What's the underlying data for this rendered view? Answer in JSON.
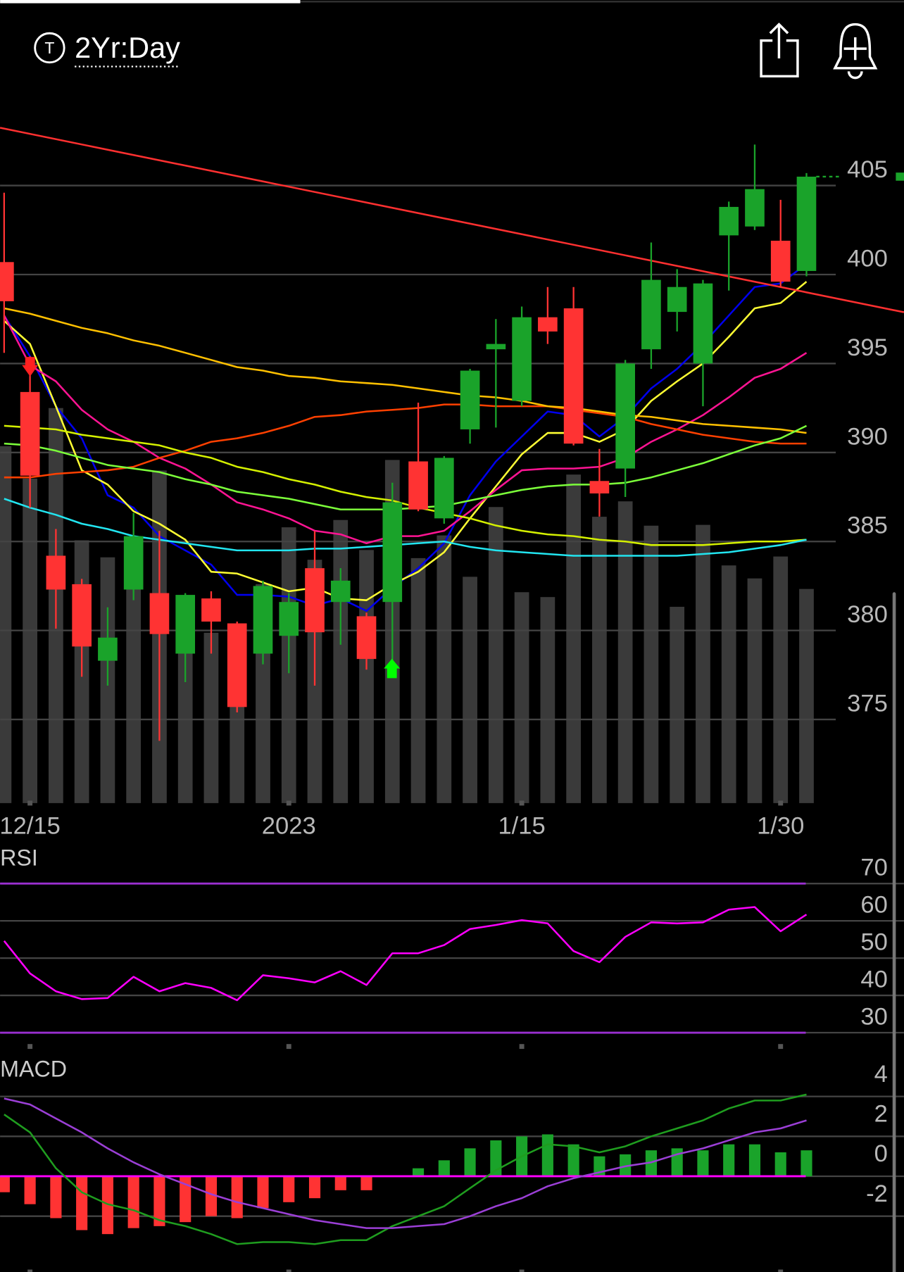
{
  "header": {
    "icon_letter": "T",
    "timeframe": "2Yr:Day"
  },
  "chart_data": [
    {
      "type": "candlestick",
      "categories": [
        null,
        "12/15",
        null,
        null,
        null,
        null,
        null,
        null,
        null,
        null,
        null,
        "2023",
        null,
        null,
        null,
        null,
        null,
        null,
        null,
        null,
        "1/15",
        null,
        null,
        null,
        null,
        null,
        null,
        null,
        null,
        null,
        "1/30",
        null
      ],
      "open": [
        400.7,
        393.4,
        384.2,
        382.6,
        378.3,
        382.3,
        382.1,
        378.7,
        381.8,
        380.4,
        378.7,
        379.7,
        383.5,
        381.6,
        380.8,
        381.6,
        389.5,
        386.3,
        391.3,
        395.8,
        392.9,
        397.6,
        398.1,
        388.4,
        389.1,
        395.8,
        397.9,
        395.0,
        402.2,
        402.7,
        401.9,
        400.2
      ],
      "high": [
        404.6,
        395.4,
        385.7,
        382.9,
        381.3,
        386.6,
        385.6,
        382.1,
        382.2,
        380.5,
        382.8,
        382.1,
        385.6,
        383.5,
        381.0,
        388.3,
        392.8,
        389.8,
        394.7,
        397.5,
        398.2,
        399.3,
        399.3,
        390.2,
        395.2,
        401.8,
        400.3,
        399.7,
        404.1,
        407.3,
        404.2,
        405.7
      ],
      "low": [
        395.6,
        386.9,
        380.1,
        377.4,
        376.9,
        381.7,
        373.8,
        377.1,
        378.7,
        375.4,
        378.1,
        377.6,
        376.9,
        379.2,
        377.8,
        378.0,
        386.7,
        386.0,
        390.5,
        391.4,
        392.6,
        396.1,
        390.4,
        386.4,
        387.5,
        394.7,
        396.8,
        392.6,
        399.1,
        402.5,
        399.3,
        399.9
      ],
      "close": [
        398.5,
        388.7,
        382.3,
        379.1,
        379.6,
        385.3,
        379.8,
        382.0,
        380.5,
        375.7,
        382.5,
        381.6,
        379.9,
        382.8,
        378.4,
        387.2,
        386.8,
        389.7,
        394.6,
        396.1,
        397.6,
        396.8,
        390.5,
        387.7,
        395.0,
        399.7,
        399.3,
        399.5,
        403.8,
        404.8,
        399.6,
        405.5
      ],
      "volume": [
        440,
        400,
        487,
        324,
        303,
        290,
        410,
        250,
        210,
        160,
        270,
        340,
        300,
        349,
        312,
        423,
        302,
        330,
        279,
        365,
        260,
        254,
        405,
        353,
        372,
        342,
        242,
        343,
        293,
        277,
        304,
        264
      ],
      "up_color": "#1aa32a",
      "down_color": "#ff3333",
      "volume_color": "#3a3a3a",
      "ylim": [
        370.3,
        409.5
      ],
      "yticks": [
        375,
        380,
        385,
        390,
        395,
        400,
        405
      ],
      "series": [
        {
          "color": "#0000ee",
          "values": [
            397.7,
            395.4,
            392.6,
            390.8,
            387.6,
            386.9,
            385.3,
            384.5,
            383.7,
            382.0,
            382.0,
            381.9,
            381.4,
            381.8,
            381.1,
            382.4,
            383.5,
            384.9,
            387.6,
            389.5,
            390.9,
            392.3,
            392.1,
            390.9,
            392.0,
            393.6,
            394.7,
            396.1,
            397.7,
            399.3,
            399.5,
            400.6
          ]
        },
        {
          "color": "#ffff33",
          "values": [
            397.4,
            396.1,
            392.6,
            389.0,
            388.2,
            386.7,
            386.0,
            385.1,
            383.3,
            383.2,
            382.7,
            382.2,
            382.4,
            381.8,
            381.7,
            382.6,
            383.3,
            384.4,
            386.3,
            388.1,
            389.9,
            391.1,
            391.1,
            390.6,
            391.3,
            392.9,
            394.0,
            395.0,
            396.5,
            398.1,
            398.4,
            399.6
          ]
        },
        {
          "color": "#ff1493",
          "values": [
            397.7,
            394.9,
            394.0,
            392.4,
            391.3,
            390.6,
            389.7,
            389.1,
            388.2,
            387.2,
            386.8,
            386.3,
            385.6,
            385.4,
            384.9,
            385.3,
            385.3,
            385.6,
            386.7,
            387.9,
            389.0,
            389.1,
            389.1,
            389.2,
            389.7,
            390.6,
            391.3,
            392.1,
            393.1,
            394.2,
            394.7,
            395.6
          ]
        },
        {
          "color": "#ff4000",
          "values": [
            388.6,
            388.6,
            388.8,
            388.9,
            389.0,
            389.2,
            389.7,
            390.1,
            390.6,
            390.8,
            391.1,
            391.5,
            392.0,
            392.1,
            392.3,
            392.4,
            392.5,
            392.7,
            392.7,
            392.6,
            392.6,
            392.6,
            392.4,
            392.2,
            392.0,
            391.6,
            391.3,
            391.0,
            390.8,
            390.6,
            390.5,
            390.5
          ]
        },
        {
          "color": "#ffc000",
          "values": [
            398.1,
            397.8,
            397.4,
            397.0,
            396.7,
            396.3,
            396.0,
            395.6,
            395.2,
            394.8,
            394.6,
            394.3,
            394.2,
            394.0,
            393.9,
            393.8,
            393.6,
            393.4,
            393.2,
            393.1,
            392.9,
            392.6,
            392.5,
            392.3,
            392.1,
            392.0,
            391.8,
            391.6,
            391.5,
            391.4,
            391.3,
            391.1
          ]
        },
        {
          "color": "#7cff3a",
          "values": [
            390.5,
            390.4,
            390.1,
            389.7,
            389.3,
            389.1,
            388.9,
            388.5,
            388.2,
            387.8,
            387.6,
            387.4,
            387.1,
            386.8,
            386.8,
            386.8,
            386.9,
            387.0,
            387.3,
            387.6,
            387.9,
            388.1,
            388.2,
            388.2,
            388.3,
            388.6,
            389.0,
            389.4,
            389.9,
            390.4,
            390.8,
            391.5
          ]
        },
        {
          "color": "#d4f000",
          "values": [
            391.5,
            391.4,
            391.3,
            391.0,
            390.8,
            390.6,
            390.4,
            390.0,
            389.7,
            389.2,
            388.9,
            388.5,
            388.2,
            387.8,
            387.5,
            387.3,
            386.9,
            386.6,
            386.3,
            385.9,
            385.6,
            385.4,
            385.3,
            385.1,
            385.0,
            384.8,
            384.8,
            384.8,
            384.9,
            385.0,
            385.0,
            385.1
          ]
        },
        {
          "color": "#22e5f0",
          "values": [
            387.4,
            386.9,
            386.5,
            386.0,
            385.7,
            385.3,
            385.1,
            384.9,
            384.7,
            384.5,
            384.5,
            384.5,
            384.6,
            384.6,
            384.7,
            384.8,
            384.9,
            385.0,
            384.7,
            384.5,
            384.4,
            384.3,
            384.2,
            384.2,
            384.2,
            384.2,
            384.2,
            384.3,
            384.4,
            384.6,
            384.8,
            385.1
          ]
        }
      ],
      "trendline": {
        "color": "#ff3030",
        "x": [
          0,
          31
        ],
        "values": [
          408.2,
          399.0
        ]
      }
    },
    {
      "type": "line",
      "title": "RSI",
      "color": "#ff00ff",
      "values": [
        54.6,
        45.9,
        41.1,
        39.0,
        39.3,
        45.0,
        41.1,
        43.3,
        42.0,
        38.7,
        45.4,
        44.6,
        43.5,
        46.5,
        42.8,
        51.3,
        51.3,
        53.5,
        57.8,
        58.9,
        60.2,
        59.3,
        51.9,
        48.9,
        55.7,
        59.6,
        59.3,
        59.6,
        63.0,
        63.7,
        57.2,
        61.7
      ],
      "ylim": [
        26.3,
        80.7
      ],
      "yticks": [
        30,
        40,
        50,
        60,
        70
      ],
      "levels": [
        30,
        70
      ],
      "level_color": "#9a2fd0"
    },
    {
      "type": "macd",
      "title": "MACD",
      "histogram": [
        -0.8,
        -1.4,
        -2.1,
        -2.7,
        -2.9,
        -2.6,
        -2.5,
        -2.3,
        -2.0,
        -2.1,
        -1.6,
        -1.3,
        -1.1,
        -0.7,
        -0.7,
        0,
        0.4,
        0.8,
        1.4,
        1.8,
        2.0,
        2.1,
        1.6,
        1.0,
        1.1,
        1.3,
        1.4,
        1.3,
        1.6,
        1.6,
        1.2,
        1.3
      ],
      "up_color": "#1aa32a",
      "down_color": "#ff3333",
      "zero_color": "#ff00ff",
      "series": [
        {
          "color": "#1f9d1f",
          "values": [
            3.1,
            2.2,
            0.4,
            -0.8,
            -1.4,
            -1.7,
            -2.2,
            -2.5,
            -2.9,
            -3.4,
            -3.3,
            -3.3,
            -3.4,
            -3.2,
            -3.2,
            -2.5,
            -2.0,
            -1.5,
            -0.6,
            0.3,
            1.0,
            1.6,
            1.5,
            1.2,
            1.5,
            2.0,
            2.4,
            2.8,
            3.4,
            3.8,
            3.8,
            4.1
          ]
        },
        {
          "color": "#9b3fd6",
          "values": [
            3.9,
            3.6,
            2.9,
            2.2,
            1.4,
            0.7,
            0.1,
            -0.4,
            -0.9,
            -1.3,
            -1.6,
            -1.9,
            -2.2,
            -2.4,
            -2.6,
            -2.6,
            -2.5,
            -2.4,
            -2.0,
            -1.5,
            -1.1,
            -0.5,
            -0.1,
            0.2,
            0.5,
            0.7,
            1.1,
            1.4,
            1.8,
            2.2,
            2.4,
            2.8
          ]
        }
      ],
      "ylim": [
        -4.8,
        6.1
      ],
      "yticks": [
        -2,
        0,
        2,
        4
      ]
    }
  ]
}
